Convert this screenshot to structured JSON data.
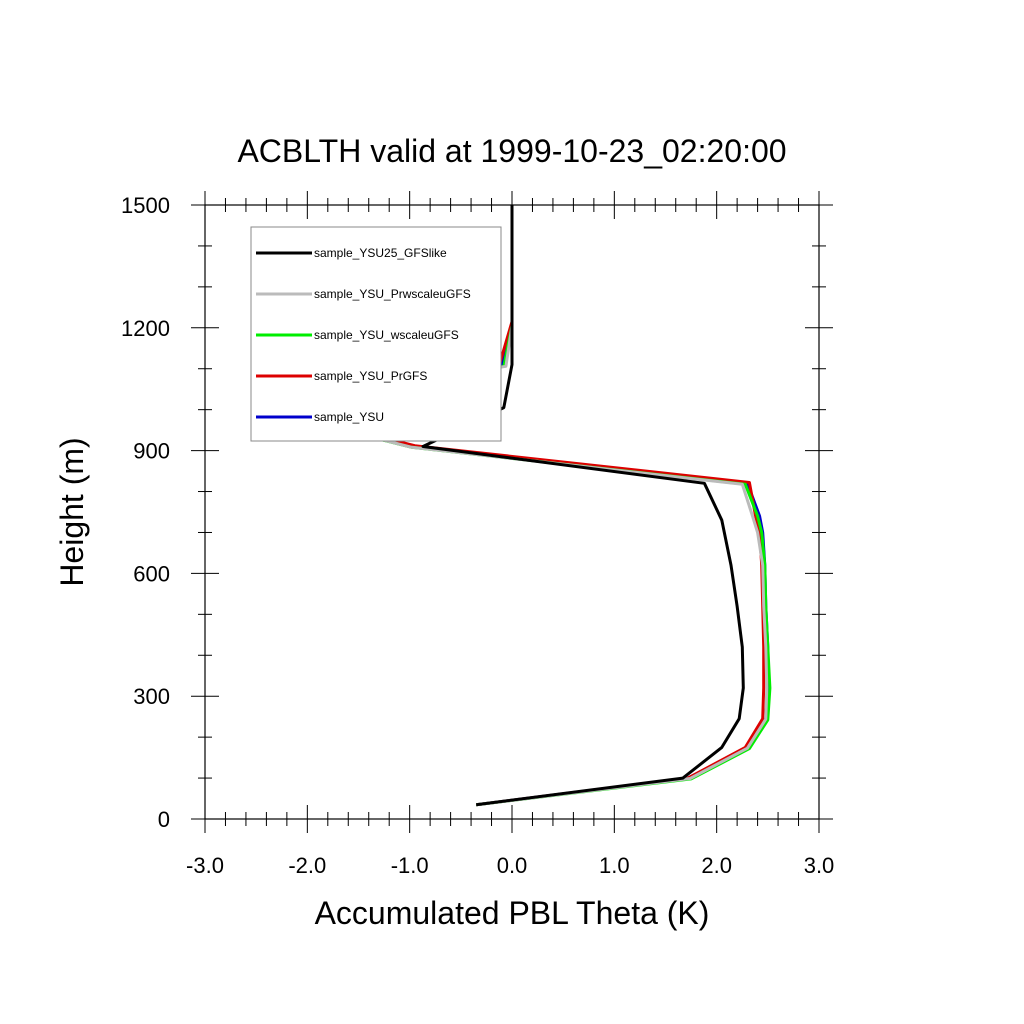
{
  "chart_data": {
    "type": "line",
    "title": "ACBLTH valid at 1999-10-23_02:20:00",
    "xlabel": "Accumulated PBL Theta (K)",
    "ylabel": "Height (m)",
    "xlim": [
      -3.0,
      3.0
    ],
    "ylim": [
      0,
      1500
    ],
    "xticks": [
      -3.0,
      -2.0,
      -1.0,
      0.0,
      1.0,
      2.0,
      3.0
    ],
    "xtick_labels": [
      "-3.0",
      "-2.0",
      "-1.0",
      "0.0",
      "1.0",
      "2.0",
      "3.0"
    ],
    "yticks": [
      0,
      300,
      600,
      900,
      1200,
      1500
    ],
    "ytick_labels": [
      "0",
      "300",
      "600",
      "900",
      "1200",
      "1500"
    ],
    "grid": false,
    "legend_position": "top-left",
    "series": [
      {
        "name": "sample_YSU",
        "color": "#0000cc",
        "points": [
          [
            -0.35,
            35
          ],
          [
            1.72,
            100
          ],
          [
            2.3,
            175
          ],
          [
            2.48,
            245
          ],
          [
            2.5,
            320
          ],
          [
            2.5,
            420
          ],
          [
            2.48,
            520
          ],
          [
            2.47,
            620
          ],
          [
            2.45,
            700
          ],
          [
            2.42,
            740
          ],
          [
            2.3,
            820
          ],
          [
            -0.95,
            910
          ],
          [
            -2.45,
            1005
          ],
          [
            -0.1,
            1110
          ],
          [
            0.0,
            1210
          ]
        ]
      },
      {
        "name": "sample_YSU_PrGFS",
        "color": "#dd0000",
        "points": [
          [
            -0.35,
            35
          ],
          [
            1.72,
            100
          ],
          [
            2.28,
            175
          ],
          [
            2.45,
            245
          ],
          [
            2.46,
            320
          ],
          [
            2.46,
            420
          ],
          [
            2.45,
            520
          ],
          [
            2.44,
            620
          ],
          [
            2.42,
            700
          ],
          [
            2.38,
            740
          ],
          [
            2.32,
            822
          ],
          [
            -0.95,
            912
          ],
          [
            -2.42,
            1005
          ],
          [
            -0.12,
            1112
          ],
          [
            0.0,
            1215
          ]
        ]
      },
      {
        "name": "sample_YSU_wscaleuGFS",
        "color": "#00ee00",
        "points": [
          [
            -0.35,
            35
          ],
          [
            1.75,
            98
          ],
          [
            2.32,
            172
          ],
          [
            2.5,
            242
          ],
          [
            2.52,
            320
          ],
          [
            2.5,
            420
          ],
          [
            2.48,
            520
          ],
          [
            2.47,
            620
          ],
          [
            2.44,
            700
          ],
          [
            2.4,
            740
          ],
          [
            2.28,
            818
          ],
          [
            -0.98,
            908
          ],
          [
            -2.5,
            1003
          ],
          [
            -0.08,
            1106
          ],
          [
            0.0,
            1205
          ]
        ]
      },
      {
        "name": "sample_YSU_PrwscaleuGFS",
        "color": "#bbbbbb",
        "points": [
          [
            -0.35,
            35
          ],
          [
            1.74,
            99
          ],
          [
            2.3,
            173
          ],
          [
            2.48,
            244
          ],
          [
            2.49,
            320
          ],
          [
            2.48,
            420
          ],
          [
            2.46,
            520
          ],
          [
            2.45,
            620
          ],
          [
            2.4,
            700
          ],
          [
            2.35,
            740
          ],
          [
            2.25,
            818
          ],
          [
            -0.98,
            908
          ],
          [
            -2.48,
            1004
          ],
          [
            -0.06,
            1106
          ],
          [
            0.0,
            1205
          ]
        ]
      },
      {
        "name": "sample_YSU25_GFSlike",
        "color": "#000000",
        "points": [
          [
            -0.35,
            35
          ],
          [
            1.67,
            100
          ],
          [
            2.05,
            175
          ],
          [
            2.22,
            245
          ],
          [
            2.26,
            320
          ],
          [
            2.25,
            420
          ],
          [
            2.2,
            520
          ],
          [
            2.14,
            620
          ],
          [
            2.05,
            730
          ],
          [
            1.88,
            820
          ],
          [
            -0.87,
            910
          ],
          [
            -0.08,
            1005
          ],
          [
            0.0,
            1110
          ],
          [
            0.0,
            1500
          ]
        ]
      }
    ],
    "legend_order": [
      "sample_YSU25_GFSlike",
      "sample_YSU_PrwscaleuGFS",
      "sample_YSU_wscaleuGFS",
      "sample_YSU_PrGFS",
      "sample_YSU"
    ]
  }
}
